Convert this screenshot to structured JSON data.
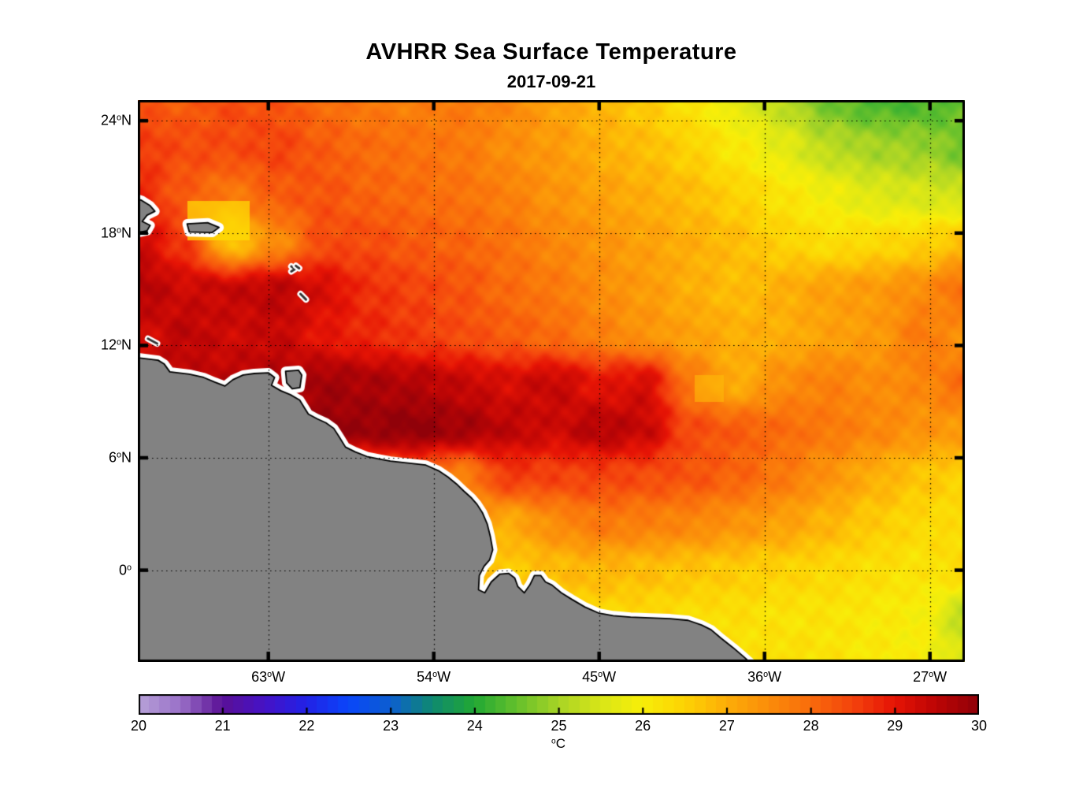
{
  "title": "AVHRR Sea Surface Temperature",
  "subtitle": "2017-09-21",
  "chart_data": {
    "type": "heatmap",
    "variable": "sea surface temperature",
    "units": "°C",
    "title": "AVHRR Sea Surface Temperature",
    "subtitle": "2017-09-21",
    "grid_style": "dotted",
    "x": {
      "range": [
        -70.1,
        -25.1
      ],
      "tick_values": [
        -63,
        -54,
        -45,
        -36,
        -27
      ],
      "tick_labels": [
        "63°W",
        "54°W",
        "45°W",
        "36°W",
        "27°W"
      ]
    },
    "y": {
      "range": [
        -4.9,
        25.1
      ],
      "tick_values": [
        24,
        18,
        12,
        6,
        0
      ],
      "tick_labels": [
        "24°N",
        "18°N",
        "12°N",
        "6°N",
        "0°"
      ]
    },
    "colorbar": {
      "label": "°C",
      "min": 20,
      "max": 30,
      "tick_values": [
        20,
        21,
        22,
        23,
        24,
        25,
        26,
        27,
        28,
        29,
        30
      ],
      "tick_labels": [
        "20",
        "21",
        "22",
        "23",
        "24",
        "25",
        "26",
        "27",
        "28",
        "29",
        "30"
      ],
      "block_step": 0.125,
      "colormap_anchors": [
        [
          20.0,
          "#b7a2d8"
        ],
        [
          20.5,
          "#9a70c8"
        ],
        [
          21.0,
          "#5a1096"
        ],
        [
          21.5,
          "#4613c6"
        ],
        [
          22.0,
          "#2222e6"
        ],
        [
          22.5,
          "#0a46fa"
        ],
        [
          23.0,
          "#0d5fd0"
        ],
        [
          23.5,
          "#0f8a70"
        ],
        [
          24.0,
          "#22a834"
        ],
        [
          24.5,
          "#65c02c"
        ],
        [
          25.0,
          "#a8d426"
        ],
        [
          25.5,
          "#d8e618"
        ],
        [
          26.0,
          "#f8ee09"
        ],
        [
          26.5,
          "#fdd304"
        ],
        [
          27.0,
          "#fdae08"
        ],
        [
          27.5,
          "#fb8d0a"
        ],
        [
          28.0,
          "#f96c0c"
        ],
        [
          28.5,
          "#f4430d"
        ],
        [
          29.0,
          "#e61405"
        ],
        [
          29.5,
          "#bc0505"
        ],
        [
          30.0,
          "#900109"
        ]
      ]
    },
    "grid": {
      "lons": [
        -70,
        -67.5,
        -65,
        -62.5,
        -60,
        -57.5,
        -55,
        -52.5,
        -50,
        -47.5,
        -45,
        -42.5,
        -40,
        -37.5,
        -35,
        -32.5,
        -30,
        -27.5,
        -25
      ],
      "lats": [
        25,
        22.5,
        20,
        17.5,
        15,
        12.5,
        10,
        7.5,
        5,
        2.5,
        0,
        -2.5,
        -5
      ],
      "sst": [
        [
          28.3,
          28.2,
          28.4,
          28.3,
          28.0,
          27.8,
          27.7,
          27.8,
          27.6,
          27.2,
          26.9,
          26.6,
          26.2,
          25.7,
          25.2,
          24.6,
          24.3,
          24.3,
          24.5
        ],
        [
          28.6,
          28.4,
          28.4,
          28.5,
          28.2,
          28.0,
          27.9,
          27.8,
          27.5,
          27.3,
          27.0,
          26.8,
          26.5,
          26.1,
          25.7,
          25.2,
          25.0,
          24.9,
          24.6
        ],
        [
          28.8,
          28.2,
          27.8,
          28.2,
          28.3,
          28.1,
          28.0,
          27.9,
          27.7,
          27.4,
          27.2,
          27.0,
          26.8,
          26.5,
          26.2,
          25.9,
          25.6,
          25.5,
          25.4
        ],
        [
          29.3,
          28.6,
          26.7,
          27.5,
          28.4,
          28.4,
          28.2,
          28.1,
          27.9,
          27.6,
          27.4,
          27.2,
          27.0,
          26.8,
          26.5,
          26.3,
          26.4,
          26.5,
          26.8
        ],
        [
          29.6,
          29.3,
          29.4,
          29.5,
          29.2,
          28.7,
          28.5,
          28.3,
          28.0,
          27.8,
          27.5,
          27.3,
          27.0,
          26.8,
          27.0,
          27.2,
          27.3,
          27.5,
          28.0
        ],
        [
          29.2,
          29.5,
          29.3,
          29.4,
          29.0,
          28.8,
          28.6,
          28.4,
          28.2,
          28.0,
          27.7,
          27.4,
          27.2,
          27.0,
          27.0,
          27.2,
          27.3,
          27.8,
          27.4
        ],
        [
          29.4,
          29.4,
          29.5,
          29.6,
          29.8,
          29.7,
          29.6,
          29.4,
          29.2,
          29.4,
          29.0,
          29.2,
          27.8,
          27.0,
          27.5,
          27.7,
          27.5,
          27.6,
          28.0
        ],
        [
          29.8,
          29.8,
          29.8,
          29.8,
          29.9,
          29.9,
          30.0,
          29.8,
          29.5,
          29.3,
          29.6,
          29.4,
          28.4,
          28.2,
          28.0,
          27.8,
          27.6,
          27.4,
          27.3
        ],
        [
          28.0,
          28.0,
          28.0,
          28.0,
          28.0,
          28.0,
          28.0,
          27.6,
          28.6,
          28.5,
          28.5,
          28.4,
          28.3,
          28.1,
          27.8,
          27.4,
          27.0,
          26.7,
          26.5
        ],
        [
          27.5,
          27.5,
          27.5,
          27.5,
          27.5,
          27.5,
          27.5,
          27.5,
          27.0,
          27.5,
          27.8,
          27.7,
          27.6,
          27.4,
          27.2,
          26.9,
          26.6,
          26.4,
          26.3
        ],
        [
          27.0,
          27.0,
          27.0,
          27.0,
          27.0,
          27.0,
          27.0,
          27.0,
          26.6,
          26.8,
          26.9,
          26.8,
          26.7,
          26.6,
          26.5,
          26.4,
          26.3,
          26.2,
          26.4
        ],
        [
          26.5,
          26.5,
          26.5,
          26.5,
          26.5,
          26.5,
          26.5,
          26.5,
          26.5,
          26.5,
          26.4,
          26.4,
          26.3,
          26.3,
          26.2,
          26.2,
          26.1,
          26.0,
          25.2
        ],
        [
          26.3,
          26.3,
          26.3,
          26.3,
          26.3,
          26.3,
          26.3,
          26.3,
          26.3,
          26.3,
          26.3,
          26.3,
          26.2,
          26.2,
          26.3,
          26.2,
          26.1,
          26.0,
          25.6
        ]
      ]
    },
    "cloud_patches": [
      {
        "lon": [
          -67.4,
          -64.0
        ],
        "lat": [
          17.6,
          19.7
        ],
        "t": 26.3,
        "w": 0.7
      },
      {
        "lon": [
          -39.8,
          -38.2
        ],
        "lat": [
          9.0,
          10.4
        ],
        "t": 26.8,
        "w": 0.6
      }
    ],
    "land": {
      "fill": "#828282",
      "outline": "#000000",
      "halo": "#ffffff",
      "mainland": [
        [
          -70.6,
          11.45
        ],
        [
          -70.07,
          11.34
        ],
        [
          -69.0,
          11.21
        ],
        [
          -68.66,
          11.0
        ],
        [
          -68.36,
          10.59
        ],
        [
          -67.29,
          10.46
        ],
        [
          -66.52,
          10.29
        ],
        [
          -65.92,
          10.04
        ],
        [
          -65.36,
          9.83
        ],
        [
          -64.93,
          10.17
        ],
        [
          -64.37,
          10.42
        ],
        [
          -63.77,
          10.5
        ],
        [
          -63.0,
          10.54
        ],
        [
          -62.66,
          10.29
        ],
        [
          -62.83,
          9.87
        ],
        [
          -62.32,
          9.58
        ],
        [
          -61.8,
          9.37
        ],
        [
          -61.29,
          9.08
        ],
        [
          -61.03,
          8.66
        ],
        [
          -60.82,
          8.33
        ],
        [
          -60.34,
          8.08
        ],
        [
          -59.87,
          7.87
        ],
        [
          -59.44,
          7.57
        ],
        [
          -59.14,
          7.11
        ],
        [
          -58.8,
          6.57
        ],
        [
          -58.28,
          6.32
        ],
        [
          -57.64,
          6.07
        ],
        [
          -57.0,
          5.94
        ],
        [
          -56.36,
          5.82
        ],
        [
          -55.5,
          5.73
        ],
        [
          -54.43,
          5.61
        ],
        [
          -53.74,
          5.31
        ],
        [
          -53.23,
          4.98
        ],
        [
          -52.76,
          4.6
        ],
        [
          -52.37,
          4.23
        ],
        [
          -51.94,
          3.85
        ],
        [
          -51.64,
          3.51
        ],
        [
          -51.34,
          3.05
        ],
        [
          -51.09,
          2.47
        ],
        [
          -50.92,
          1.8
        ],
        [
          -50.79,
          1.09
        ],
        [
          -50.96,
          0.54
        ],
        [
          -51.26,
          0.21
        ],
        [
          -51.52,
          -0.29
        ],
        [
          -51.56,
          -1.05
        ],
        [
          -51.22,
          -1.21
        ],
        [
          -50.87,
          -0.63
        ],
        [
          -50.4,
          -0.21
        ],
        [
          -49.93,
          -0.17
        ],
        [
          -49.59,
          -0.42
        ],
        [
          -49.42,
          -0.88
        ],
        [
          -49.07,
          -1.21
        ],
        [
          -48.77,
          -0.79
        ],
        [
          -48.52,
          -0.29
        ],
        [
          -48.17,
          -0.29
        ],
        [
          -47.92,
          -0.63
        ],
        [
          -47.57,
          -0.79
        ],
        [
          -47.06,
          -1.21
        ],
        [
          -46.5,
          -1.55
        ],
        [
          -45.77,
          -1.97
        ],
        [
          -45.0,
          -2.3
        ],
        [
          -44.23,
          -2.43
        ],
        [
          -43.29,
          -2.51
        ],
        [
          -42.22,
          -2.55
        ],
        [
          -41.14,
          -2.59
        ],
        [
          -40.16,
          -2.68
        ],
        [
          -39.43,
          -2.93
        ],
        [
          -38.91,
          -3.18
        ],
        [
          -38.36,
          -3.64
        ],
        [
          -37.71,
          -4.14
        ],
        [
          -37.16,
          -4.6
        ],
        [
          -36.77,
          -4.94
        ],
        [
          -36.6,
          -5.3
        ],
        [
          -70.6,
          -5.3
        ]
      ],
      "islands": [
        [
          [
            -62.06,
            10.62
          ],
          [
            -61.35,
            10.67
          ],
          [
            -61.18,
            10.42
          ],
          [
            -61.28,
            9.75
          ],
          [
            -61.7,
            9.68
          ],
          [
            -62.0,
            10.0
          ]
        ],
        [
          [
            -67.42,
            18.49
          ],
          [
            -66.3,
            18.55
          ],
          [
            -65.68,
            18.3
          ],
          [
            -66.05,
            18.03
          ],
          [
            -67.3,
            18.06
          ]
        ],
        [
          [
            -70.6,
            19.95
          ],
          [
            -69.9,
            19.75
          ],
          [
            -69.43,
            19.46
          ],
          [
            -69.17,
            19.16
          ],
          [
            -69.6,
            18.95
          ],
          [
            -69.86,
            18.62
          ],
          [
            -69.43,
            18.41
          ],
          [
            -69.6,
            18.12
          ],
          [
            -70.07,
            18.03
          ],
          [
            -70.6,
            17.95
          ]
        ]
      ],
      "islets": [
        [
          [
            -61.75,
            16.22
          ],
          [
            -61.55,
            16.08
          ],
          [
            -61.75,
            15.95
          ]
        ],
        [
          [
            -61.5,
            16.25
          ],
          [
            -61.32,
            16.12
          ]
        ],
        [
          [
            -61.25,
            14.75
          ],
          [
            -60.95,
            14.45
          ]
        ],
        [
          [
            -69.55,
            12.36
          ],
          [
            -69.05,
            12.1
          ]
        ]
      ]
    }
  }
}
